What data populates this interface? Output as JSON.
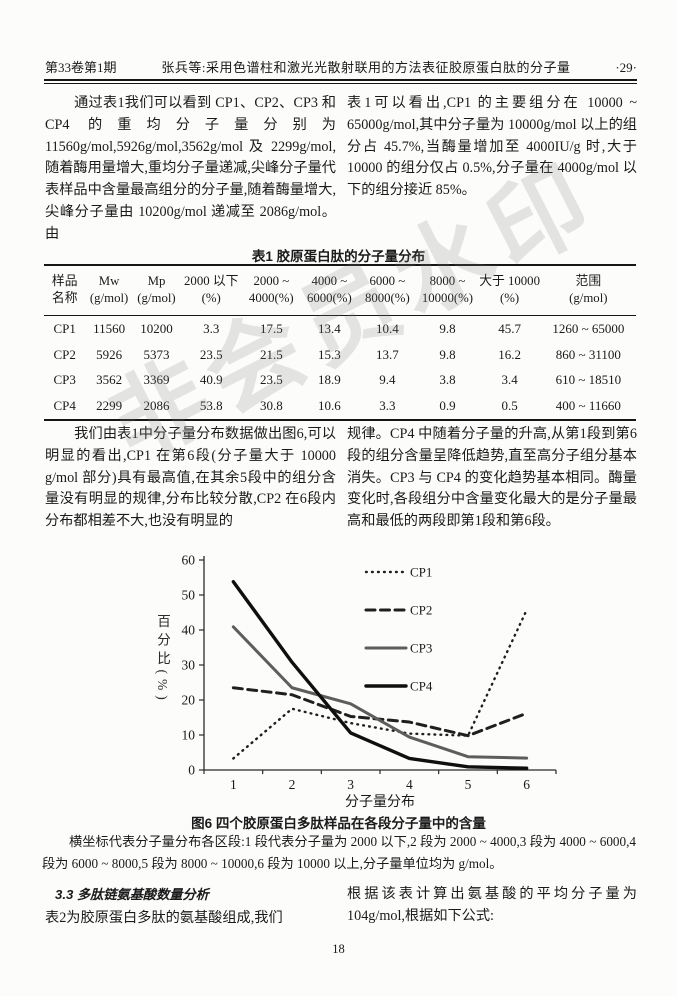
{
  "header": {
    "issue": "第33卷第1期",
    "title": "张兵等:采用色谱柱和激光光散射联用的方法表征胶原蛋白肽的分子量",
    "page_marker": "·29·"
  },
  "paragraphs": {
    "p1_left": "通过表1我们可以看到 CP1、CP2、CP3 和 CP4 的重均分子量分别为 11560g/mol,5926g/mol,3562g/mol 及 2299g/mol,随着酶用量增大,重均分子量递减,尖峰分子量代表样品中含量最高组分的分子量,随着酶量增大,尖峰分子量由 10200g/mol 递减至 2086g/mol。由",
    "p1_right": "表1可以看出,CP1 的主要组分在 10000 ~ 65000g/mol,其中分子量为 10000g/mol 以上的组分占 45.7%,当酶量增加至 4000IU/g 时,大于 10000 的组分仅占 0.5%,分子量在 4000g/mol 以下的组分接近 85%。",
    "p2_left": "我们由表1中分子量分布数据做出图6,可以明显的看出,CP1 在第6段(分子量大于 10000 g/mol 部分)具有最高值,在其余5段中的组分含量没有明显的规律,分布比较分散,CP2 在6段内分布都相差不大,也没有明显的",
    "p2_right": "规律。CP4 中随着分子量的升高,从第1段到第6段的组分含量呈降低趋势,直至高分子组分基本消失。CP3 与 CP4 的变化趋势基本相同。酶量变化时,各段组分中含量变化最大的是分子量最高和最低的两段即第1段和第6段。"
  },
  "table": {
    "title": "表1  胶原蛋白肽的分子量分布",
    "headers": [
      "样品\n名称",
      "Mw\n(g/mol)",
      "Mp\n(g/mol)",
      "2000 以下\n(%)",
      "2000 ~\n4000(%)",
      "4000 ~\n6000(%)",
      "6000 ~\n8000(%)",
      "8000 ~\n10000(%)",
      "大于 10000\n(%)",
      "范围\n(g/mol)"
    ],
    "rows": [
      [
        "CP1",
        "11560",
        "10200",
        "3.3",
        "17.5",
        "13.4",
        "10.4",
        "9.8",
        "45.7",
        "1260 ~ 65000"
      ],
      [
        "CP2",
        "5926",
        "5373",
        "23.5",
        "21.5",
        "15.3",
        "13.7",
        "9.8",
        "16.2",
        "860 ~ 31100"
      ],
      [
        "CP3",
        "3562",
        "3369",
        "40.9",
        "23.5",
        "18.9",
        "9.4",
        "3.8",
        "3.4",
        "610 ~ 18510"
      ],
      [
        "CP4",
        "2299",
        "2086",
        "53.8",
        "30.8",
        "10.6",
        "3.3",
        "0.9",
        "0.5",
        "400 ~ 11660"
      ]
    ]
  },
  "chart_data": {
    "type": "line",
    "categories": [
      "1",
      "2",
      "3",
      "4",
      "5",
      "6"
    ],
    "series": [
      {
        "name": "CP1",
        "style": "dotted",
        "dash": "0.8 5.2",
        "width": 2.4,
        "color": "#1f1f1f",
        "values": [
          3.3,
          17.5,
          13.4,
          10.4,
          9.8,
          45.7
        ]
      },
      {
        "name": "CP2",
        "style": "dashed",
        "dash": "9 5.5",
        "width": 3,
        "color": "#1f1f1f",
        "values": [
          23.5,
          21.5,
          15.3,
          13.7,
          9.8,
          16.2
        ]
      },
      {
        "name": "CP3",
        "style": "solid",
        "width": 3,
        "color": "#5d5d5d",
        "values": [
          40.9,
          23.5,
          18.9,
          9.4,
          3.8,
          3.4
        ]
      },
      {
        "name": "CP4",
        "style": "solid",
        "width": 3.4,
        "color": "#0f0f0f",
        "values": [
          53.8,
          30.8,
          10.6,
          3.3,
          0.9,
          0.5
        ]
      }
    ],
    "title": "图6  四个胶原蛋白多肽样品在各段分子量中的含量",
    "xlabel": "分子量分布",
    "ylabel": "百分比(%)",
    "ylim": [
      0,
      60
    ],
    "yticks": [
      0,
      10,
      20,
      30,
      40,
      50,
      60
    ],
    "legend_position": "top-right",
    "grid": false
  },
  "figure": {
    "caption": "图6  四个胶原蛋白多肽样品在各段分子量中的含量",
    "note": "横坐标代表分子量分布各区段:1 段代表分子量为 2000 以下,2 段为 2000 ~ 4000,3 段为 4000 ~ 6000,4 段为 6000 ~ 8000,5 段为 8000 ~ 10000,6 段为 10000 以上,分子量单位均为 g/mol。"
  },
  "section": {
    "heading": "3.3  多肽链氨基酸数量分析",
    "left_text": "表2为胶原蛋白多肽的氨基酸组成,我们",
    "right_text": "根据该表计算出氨基酸的平均分子量为 104g/mol,根据如下公式:"
  },
  "footer": {
    "page_number": "18"
  },
  "watermark": {
    "text": "非会员水印",
    "color": "#808080"
  }
}
